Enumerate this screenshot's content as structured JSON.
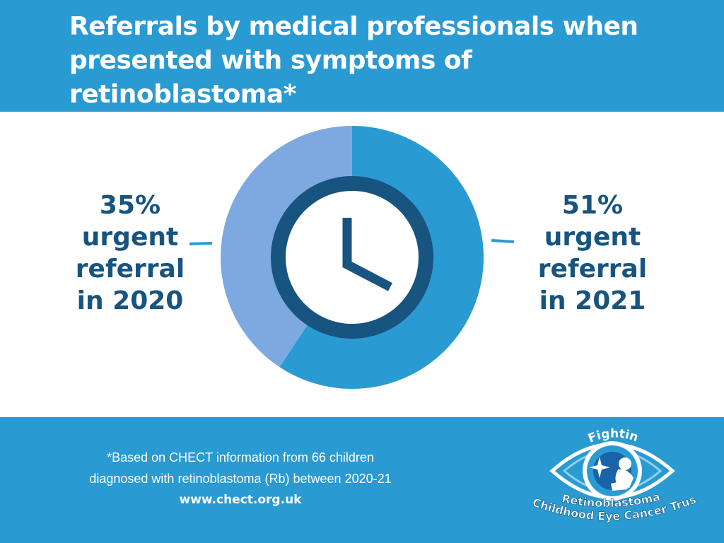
{
  "title": "Referrals by medical professionals when presented with symptoms of retinoblastoma*",
  "chart_data": {
    "type": "pie",
    "categories": [
      "2020",
      "2021"
    ],
    "values": [
      35,
      51
    ],
    "colors": [
      "#7ea9e0",
      "#2a9ad2"
    ],
    "center_icon": "clock-icon"
  },
  "stats": {
    "left": {
      "value": "35%",
      "line2": "urgent",
      "line3": "referral",
      "line4": "in 2020"
    },
    "right": {
      "value": "51%",
      "line2": "urgent",
      "line3": "referral",
      "line4": "in 2021"
    }
  },
  "footnote": {
    "line1": "*Based on CHECT information from 66 children",
    "line2": "diagnosed with retinoblastoma (Rb) between 2020-21",
    "url": "www.chect.org.uk"
  },
  "logo": {
    "top_text": "Fighting",
    "middle_text": "Retinoblastoma",
    "bottom_text": "Childhood Eye Cancer Trust"
  },
  "colors": {
    "header_bg": "#2a9ad2",
    "dark_blue": "#17547f",
    "light_blue": "#7ea9e0"
  }
}
